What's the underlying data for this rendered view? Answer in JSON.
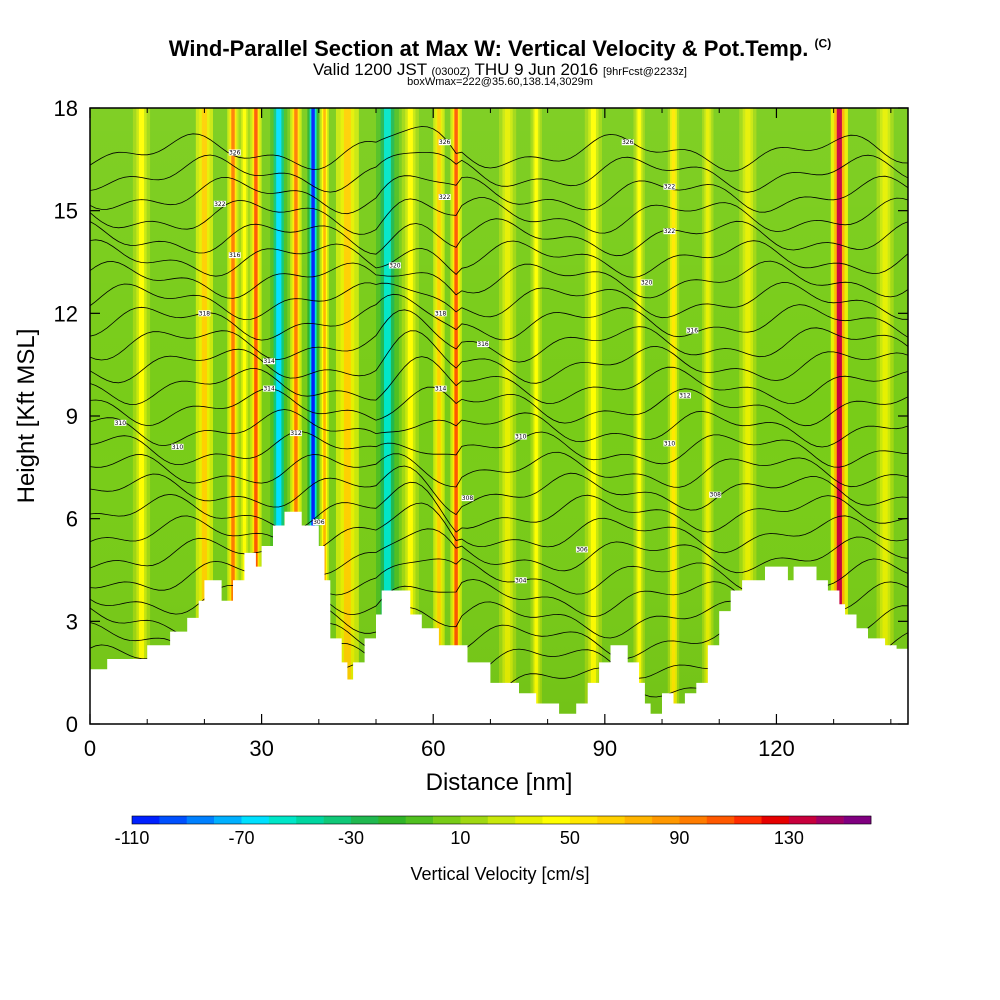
{
  "header": {
    "title_main": "Wind-Parallel Section at Max W: Vertical Velocity & Pot.Temp.",
    "title_copyright": "(C)",
    "valid_prefix": "Valid 1200 JST",
    "valid_utc": "(0300Z)",
    "valid_date": "THU 9 Jun 2016",
    "valid_fcst": "[9hrFcst@2233z]",
    "box_info": "boxWmax=222@35.60,138.14,3029m"
  },
  "chart_data": {
    "type": "heatmap",
    "title": "Wind-Parallel Section at Max W: Vertical Velocity & Pot.Temp.",
    "xlabel": "Distance [nm]",
    "ylabel": "Height [Kft MSL]",
    "xlim": [
      0,
      143
    ],
    "ylim": [
      0,
      18
    ],
    "x_ticks": [
      0,
      30,
      60,
      90,
      120
    ],
    "y_ticks": [
      0,
      3,
      6,
      9,
      12,
      15,
      18
    ],
    "colorbar": {
      "label": "Vertical Velocity [cm/s]",
      "min": -110,
      "max": 150,
      "step": 10,
      "tick_labels": [
        "-110",
        "-70",
        "-30",
        "10",
        "50",
        "90",
        "130"
      ],
      "colors": [
        "#0020ff",
        "#0050ff",
        "#0080ff",
        "#00b0ff",
        "#00e0ff",
        "#00e6c8",
        "#00d6a0",
        "#10c878",
        "#20b850",
        "#30b428",
        "#50c020",
        "#78cc18",
        "#a0d812",
        "#c8e80c",
        "#e6f000",
        "#ffff00",
        "#ffe800",
        "#ffd000",
        "#ffb400",
        "#ff9800",
        "#ff7c00",
        "#ff5800",
        "#ff2c00",
        "#e60000",
        "#c8003c",
        "#a00064",
        "#800080"
      ]
    },
    "terrain_kft": [
      [
        0,
        1.6
      ],
      [
        3,
        1.6
      ],
      [
        3,
        1.9
      ],
      [
        10,
        1.9
      ],
      [
        10,
        2.3
      ],
      [
        14,
        2.3
      ],
      [
        14,
        2.7
      ],
      [
        17,
        2.7
      ],
      [
        17,
        3.1
      ],
      [
        19,
        3.1
      ],
      [
        19,
        3.6
      ],
      [
        20,
        3.6
      ],
      [
        20,
        4.2
      ],
      [
        23,
        4.2
      ],
      [
        23,
        3.6
      ],
      [
        25,
        3.6
      ],
      [
        25,
        4.2
      ],
      [
        27,
        4.2
      ],
      [
        27,
        5.0
      ],
      [
        29,
        5.0
      ],
      [
        29,
        4.6
      ],
      [
        30,
        4.6
      ],
      [
        30,
        5.2
      ],
      [
        32,
        5.2
      ],
      [
        32,
        5.8
      ],
      [
        34,
        5.8
      ],
      [
        34,
        6.2
      ],
      [
        37,
        6.2
      ],
      [
        37,
        5.8
      ],
      [
        40,
        5.8
      ],
      [
        40,
        5.2
      ],
      [
        41,
        5.2
      ],
      [
        41,
        4.2
      ],
      [
        42,
        4.2
      ],
      [
        42,
        2.5
      ],
      [
        44,
        2.5
      ],
      [
        44,
        1.8
      ],
      [
        45,
        1.8
      ],
      [
        45,
        1.3
      ],
      [
        46,
        1.3
      ],
      [
        46,
        1.8
      ],
      [
        48,
        1.8
      ],
      [
        48,
        2.5
      ],
      [
        50,
        2.5
      ],
      [
        50,
        3.2
      ],
      [
        51,
        3.2
      ],
      [
        51,
        3.9
      ],
      [
        56,
        3.9
      ],
      [
        56,
        3.2
      ],
      [
        58,
        3.2
      ],
      [
        58,
        2.8
      ],
      [
        61,
        2.8
      ],
      [
        61,
        2.3
      ],
      [
        66,
        2.3
      ],
      [
        66,
        1.8
      ],
      [
        70,
        1.8
      ],
      [
        70,
        1.2
      ],
      [
        75,
        1.2
      ],
      [
        75,
        0.9
      ],
      [
        78,
        0.9
      ],
      [
        78,
        0.6
      ],
      [
        82,
        0.6
      ],
      [
        82,
        0.3
      ],
      [
        85,
        0.3
      ],
      [
        85,
        0.6
      ],
      [
        87,
        0.6
      ],
      [
        87,
        1.2
      ],
      [
        89,
        1.2
      ],
      [
        89,
        1.8
      ],
      [
        91,
        1.8
      ],
      [
        91,
        2.3
      ],
      [
        94,
        2.3
      ],
      [
        94,
        1.8
      ],
      [
        96,
        1.8
      ],
      [
        96,
        1.2
      ],
      [
        97,
        1.2
      ],
      [
        97,
        0.6
      ],
      [
        98,
        0.6
      ],
      [
        98,
        0.3
      ],
      [
        100,
        0.3
      ],
      [
        100,
        0.9
      ],
      [
        102,
        0.9
      ],
      [
        102,
        0.6
      ],
      [
        104,
        0.6
      ],
      [
        104,
        0.9
      ],
      [
        106,
        0.9
      ],
      [
        106,
        1.2
      ],
      [
        108,
        1.2
      ],
      [
        108,
        2.3
      ],
      [
        110,
        2.3
      ],
      [
        110,
        3.3
      ],
      [
        112,
        3.3
      ],
      [
        112,
        3.9
      ],
      [
        114,
        3.9
      ],
      [
        114,
        4.2
      ],
      [
        118,
        4.2
      ],
      [
        118,
        4.6
      ],
      [
        122,
        4.6
      ],
      [
        122,
        4.2
      ],
      [
        123,
        4.2
      ],
      [
        123,
        4.6
      ],
      [
        127,
        4.6
      ],
      [
        127,
        4.2
      ],
      [
        129,
        4.2
      ],
      [
        129,
        3.9
      ],
      [
        131,
        3.9
      ],
      [
        131,
        3.5
      ],
      [
        132,
        3.5
      ],
      [
        132,
        3.2
      ],
      [
        134,
        3.2
      ],
      [
        134,
        2.8
      ],
      [
        136,
        2.8
      ],
      [
        136,
        2.5
      ],
      [
        139,
        2.5
      ],
      [
        139,
        2.3
      ],
      [
        141,
        2.3
      ],
      [
        141,
        2.2
      ],
      [
        143,
        2.2
      ]
    ],
    "velocity_bands": [
      {
        "x_nm": 9,
        "width_nm": 3,
        "w_cms": 40
      },
      {
        "x_nm": 20,
        "width_nm": 3,
        "w_cms": 60
      },
      {
        "x_nm": 25,
        "width_nm": 2,
        "w_cms": 90
      },
      {
        "x_nm": 27,
        "width_nm": 2,
        "w_cms": 40
      },
      {
        "x_nm": 29,
        "width_nm": 2,
        "w_cms": 100
      },
      {
        "x_nm": 33,
        "width_nm": 3,
        "w_cms": -70
      },
      {
        "x_nm": 36,
        "width_nm": 2,
        "w_cms": 90
      },
      {
        "x_nm": 39,
        "width_nm": 2,
        "w_cms": -110
      },
      {
        "x_nm": 41,
        "width_nm": 1.5,
        "w_cms": 70
      },
      {
        "x_nm": 45,
        "width_nm": 4,
        "w_cms": 60
      },
      {
        "x_nm": 52,
        "width_nm": 4,
        "w_cms": -60
      },
      {
        "x_nm": 56,
        "width_nm": 3,
        "w_cms": 40
      },
      {
        "x_nm": 61,
        "width_nm": 2,
        "w_cms": 60
      },
      {
        "x_nm": 64,
        "width_nm": 2,
        "w_cms": 100
      },
      {
        "x_nm": 73,
        "width_nm": 3,
        "w_cms": 30
      },
      {
        "x_nm": 78,
        "width_nm": 2,
        "w_cms": 40
      },
      {
        "x_nm": 88,
        "width_nm": 3,
        "w_cms": 40
      },
      {
        "x_nm": 96,
        "width_nm": 2,
        "w_cms": 40
      },
      {
        "x_nm": 102,
        "width_nm": 2,
        "w_cms": 50
      },
      {
        "x_nm": 108,
        "width_nm": 2,
        "w_cms": 30
      },
      {
        "x_nm": 115,
        "width_nm": 3,
        "w_cms": 30
      },
      {
        "x_nm": 131,
        "width_nm": 3,
        "w_cms": 130
      },
      {
        "x_nm": 139,
        "width_nm": 3,
        "w_cms": 30
      }
    ],
    "contour_labels": [
      {
        "x": 5.3,
        "y": 8.8,
        "text": "310"
      },
      {
        "x": 15.3,
        "y": 8.1,
        "text": "310"
      },
      {
        "x": 20,
        "y": 12.0,
        "text": "318"
      },
      {
        "x": 22.7,
        "y": 15.2,
        "text": "322"
      },
      {
        "x": 25.3,
        "y": 16.7,
        "text": "326"
      },
      {
        "x": 25.3,
        "y": 13.7,
        "text": "316"
      },
      {
        "x": 31.3,
        "y": 10.6,
        "text": "314"
      },
      {
        "x": 31.3,
        "y": 9.8,
        "text": "314"
      },
      {
        "x": 36,
        "y": 8.5,
        "text": "312"
      },
      {
        "x": 40,
        "y": 5.9,
        "text": "306"
      },
      {
        "x": 53.3,
        "y": 13.4,
        "text": "320"
      },
      {
        "x": 61.3,
        "y": 12.0,
        "text": "318"
      },
      {
        "x": 61.3,
        "y": 9.8,
        "text": "314"
      },
      {
        "x": 62,
        "y": 17.0,
        "text": "326"
      },
      {
        "x": 62,
        "y": 15.4,
        "text": "322"
      },
      {
        "x": 66,
        "y": 6.6,
        "text": "308"
      },
      {
        "x": 68.7,
        "y": 11.1,
        "text": "316"
      },
      {
        "x": 75.3,
        "y": 8.4,
        "text": "310"
      },
      {
        "x": 75.3,
        "y": 4.2,
        "text": "304"
      },
      {
        "x": 86,
        "y": 5.1,
        "text": "306"
      },
      {
        "x": 94,
        "y": 17.0,
        "text": "326"
      },
      {
        "x": 97.3,
        "y": 12.9,
        "text": "320"
      },
      {
        "x": 101.3,
        "y": 15.7,
        "text": "322"
      },
      {
        "x": 101.3,
        "y": 14.4,
        "text": "322"
      },
      {
        "x": 101.3,
        "y": 8.2,
        "text": "310"
      },
      {
        "x": 104,
        "y": 9.6,
        "text": "312"
      },
      {
        "x": 105.3,
        "y": 11.5,
        "text": "316"
      },
      {
        "x": 109.3,
        "y": 6.7,
        "text": "308"
      }
    ]
  }
}
